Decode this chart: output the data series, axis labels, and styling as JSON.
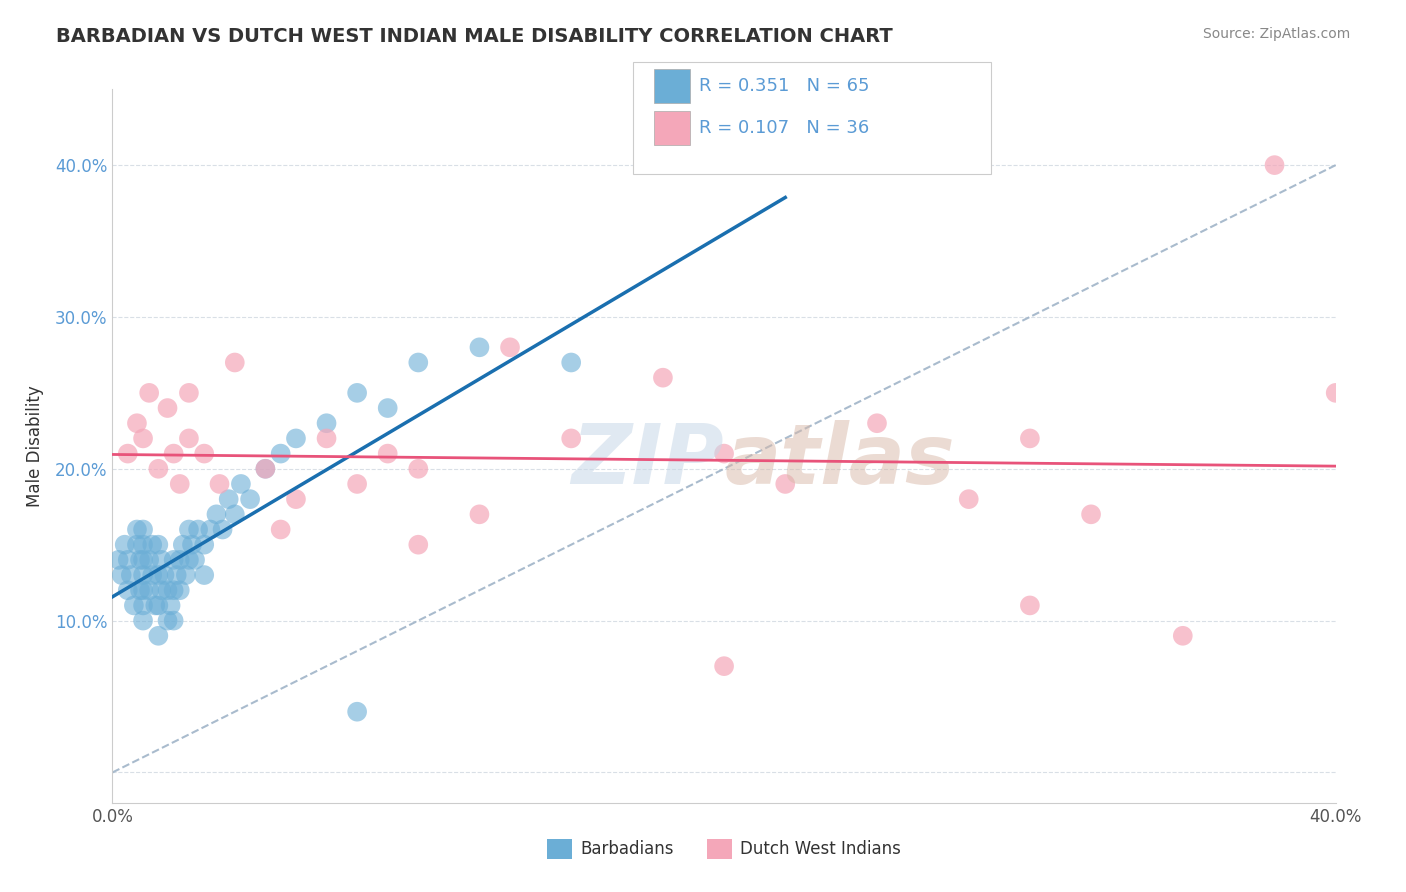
{
  "title": "BARBADIAN VS DUTCH WEST INDIAN MALE DISABILITY CORRELATION CHART",
  "source": "Source: ZipAtlas.com",
  "ylabel": "Male Disability",
  "xlim": [
    0.0,
    0.4
  ],
  "ylim": [
    -0.02,
    0.45
  ],
  "legend_r1": "R = 0.351",
  "legend_n1": "N = 65",
  "legend_r2": "R = 0.107",
  "legend_n2": "N = 36",
  "color_blue": "#6baed6",
  "color_pink": "#f4a7b9",
  "blue_line_color": "#1a6faf",
  "pink_line_color": "#e8537a",
  "dashed_line_color": "#a0b4c8",
  "barbadian_x": [
    0.002,
    0.003,
    0.004,
    0.005,
    0.005,
    0.006,
    0.007,
    0.008,
    0.008,
    0.009,
    0.009,
    0.01,
    0.01,
    0.01,
    0.01,
    0.01,
    0.01,
    0.01,
    0.012,
    0.012,
    0.013,
    0.013,
    0.014,
    0.015,
    0.015,
    0.015,
    0.015,
    0.016,
    0.016,
    0.017,
    0.018,
    0.018,
    0.019,
    0.02,
    0.02,
    0.02,
    0.021,
    0.022,
    0.022,
    0.023,
    0.024,
    0.025,
    0.025,
    0.026,
    0.027,
    0.028,
    0.03,
    0.03,
    0.032,
    0.034,
    0.036,
    0.038,
    0.04,
    0.042,
    0.045,
    0.05,
    0.055,
    0.06,
    0.07,
    0.08,
    0.09,
    0.1,
    0.12,
    0.15,
    0.08
  ],
  "barbadian_y": [
    0.14,
    0.13,
    0.15,
    0.12,
    0.14,
    0.13,
    0.11,
    0.15,
    0.16,
    0.12,
    0.14,
    0.1,
    0.11,
    0.12,
    0.13,
    0.14,
    0.15,
    0.16,
    0.12,
    0.14,
    0.13,
    0.15,
    0.11,
    0.09,
    0.11,
    0.13,
    0.15,
    0.12,
    0.14,
    0.13,
    0.1,
    0.12,
    0.11,
    0.1,
    0.12,
    0.14,
    0.13,
    0.12,
    0.14,
    0.15,
    0.13,
    0.14,
    0.16,
    0.15,
    0.14,
    0.16,
    0.13,
    0.15,
    0.16,
    0.17,
    0.16,
    0.18,
    0.17,
    0.19,
    0.18,
    0.2,
    0.21,
    0.22,
    0.23,
    0.25,
    0.24,
    0.27,
    0.28,
    0.27,
    0.04
  ],
  "dutch_x": [
    0.005,
    0.008,
    0.01,
    0.012,
    0.015,
    0.018,
    0.02,
    0.022,
    0.025,
    0.025,
    0.03,
    0.035,
    0.04,
    0.05,
    0.055,
    0.06,
    0.07,
    0.08,
    0.09,
    0.1,
    0.12,
    0.13,
    0.15,
    0.18,
    0.2,
    0.22,
    0.25,
    0.28,
    0.3,
    0.32,
    0.35,
    0.38,
    0.4,
    0.1,
    0.2,
    0.3
  ],
  "dutch_y": [
    0.21,
    0.23,
    0.22,
    0.25,
    0.2,
    0.24,
    0.21,
    0.19,
    0.22,
    0.25,
    0.21,
    0.19,
    0.27,
    0.2,
    0.16,
    0.18,
    0.22,
    0.19,
    0.21,
    0.2,
    0.17,
    0.28,
    0.22,
    0.26,
    0.21,
    0.19,
    0.23,
    0.18,
    0.22,
    0.17,
    0.09,
    0.4,
    0.25,
    0.15,
    0.07,
    0.11
  ]
}
